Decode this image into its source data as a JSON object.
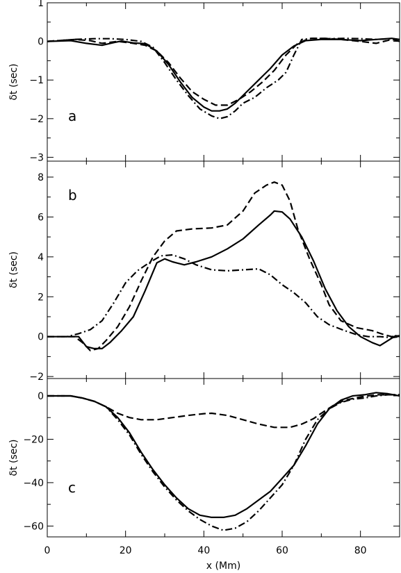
{
  "chart_data": [
    {
      "type": "line",
      "panel_label": "a",
      "ylabel": "δt (sec)",
      "xlim": [
        0,
        90
      ],
      "ylim": [
        -3.1,
        1
      ],
      "yticks": [
        -3,
        -2,
        -1,
        0,
        1
      ],
      "ytick_labels": [
        "−3",
        "−2",
        "−1",
        "0",
        "1"
      ],
      "series": [
        {
          "style": "solid",
          "points": [
            [
              0,
              0
            ],
            [
              6,
              0.02
            ],
            [
              10,
              -0.05
            ],
            [
              14,
              -0.1
            ],
            [
              17,
              -0.03
            ],
            [
              19,
              0.01
            ],
            [
              22,
              -0.04
            ],
            [
              25,
              -0.06
            ],
            [
              28,
              -0.25
            ],
            [
              31,
              -0.6
            ],
            [
              34,
              -1.05
            ],
            [
              37,
              -1.45
            ],
            [
              40,
              -1.7
            ],
            [
              42,
              -1.8
            ],
            [
              44,
              -1.8
            ],
            [
              46,
              -1.75
            ],
            [
              48,
              -1.6
            ],
            [
              51,
              -1.3
            ],
            [
              54,
              -1.0
            ],
            [
              57,
              -0.7
            ],
            [
              60,
              -0.35
            ],
            [
              63,
              -0.12
            ],
            [
              66,
              0.02
            ],
            [
              70,
              0.05
            ],
            [
              75,
              0.05
            ],
            [
              80,
              0.02
            ],
            [
              84,
              0.05
            ],
            [
              88,
              0.08
            ],
            [
              90,
              0.05
            ]
          ]
        },
        {
          "style": "dashed",
          "points": [
            [
              0,
              0
            ],
            [
              7,
              0.05
            ],
            [
              11,
              0.02
            ],
            [
              14,
              -0.05
            ],
            [
              18,
              0
            ],
            [
              22,
              -0.05
            ],
            [
              25,
              -0.1
            ],
            [
              28,
              -0.25
            ],
            [
              31,
              -0.55
            ],
            [
              34,
              -0.95
            ],
            [
              37,
              -1.3
            ],
            [
              40,
              -1.5
            ],
            [
              43,
              -1.65
            ],
            [
              46,
              -1.65
            ],
            [
              49,
              -1.5
            ],
            [
              52,
              -1.3
            ],
            [
              55,
              -1.05
            ],
            [
              58,
              -0.75
            ],
            [
              61,
              -0.35
            ],
            [
              64,
              -0.05
            ],
            [
              67,
              0.08
            ],
            [
              71,
              0.08
            ],
            [
              75,
              0.05
            ],
            [
              80,
              0
            ],
            [
              84,
              -0.05
            ],
            [
              88,
              0.05
            ],
            [
              90,
              0
            ]
          ]
        },
        {
          "style": "dashdot",
          "points": [
            [
              0,
              0
            ],
            [
              7,
              0.05
            ],
            [
              12,
              0.07
            ],
            [
              16,
              0.07
            ],
            [
              20,
              0.05
            ],
            [
              24,
              0
            ],
            [
              27,
              -0.15
            ],
            [
              30,
              -0.55
            ],
            [
              33,
              -1.0
            ],
            [
              36,
              -1.4
            ],
            [
              39,
              -1.75
            ],
            [
              42,
              -1.93
            ],
            [
              44,
              -2.0
            ],
            [
              46,
              -1.95
            ],
            [
              48,
              -1.8
            ],
            [
              50,
              -1.6
            ],
            [
              53,
              -1.45
            ],
            [
              56,
              -1.2
            ],
            [
              59,
              -1.0
            ],
            [
              61,
              -0.8
            ],
            [
              63,
              -0.35
            ],
            [
              65,
              0.05
            ],
            [
              68,
              0.08
            ],
            [
              72,
              0.07
            ],
            [
              76,
              0.08
            ],
            [
              80,
              0.07
            ],
            [
              84,
              0.05
            ],
            [
              88,
              0.07
            ],
            [
              90,
              0.05
            ]
          ]
        }
      ]
    },
    {
      "type": "line",
      "panel_label": "b",
      "ylabel": "δt (sec)",
      "xlim": [
        0,
        90
      ],
      "ylim": [
        -2.1,
        8.8
      ],
      "yticks": [
        -2,
        0,
        2,
        4,
        6,
        8
      ],
      "ytick_labels": [
        "−2",
        "0",
        "2",
        "4",
        "6",
        "8"
      ],
      "series": [
        {
          "style": "solid",
          "points": [
            [
              0,
              0
            ],
            [
              5,
              0
            ],
            [
              8,
              0
            ],
            [
              10,
              -0.5
            ],
            [
              12,
              -0.6
            ],
            [
              14,
              -0.6
            ],
            [
              16,
              -0.3
            ],
            [
              19,
              0.3
            ],
            [
              22,
              1.0
            ],
            [
              25,
              2.3
            ],
            [
              28,
              3.7
            ],
            [
              30,
              3.9
            ],
            [
              32,
              3.75
            ],
            [
              35,
              3.6
            ],
            [
              38,
              3.75
            ],
            [
              42,
              4.0
            ],
            [
              46,
              4.4
            ],
            [
              50,
              4.9
            ],
            [
              54,
              5.6
            ],
            [
              57,
              6.1
            ],
            [
              58,
              6.3
            ],
            [
              60,
              6.25
            ],
            [
              62,
              5.9
            ],
            [
              65,
              5.0
            ],
            [
              68,
              3.8
            ],
            [
              71,
              2.4
            ],
            [
              74,
              1.3
            ],
            [
              77,
              0.5
            ],
            [
              80,
              0
            ],
            [
              83,
              -0.3
            ],
            [
              85,
              -0.45
            ],
            [
              87,
              -0.2
            ],
            [
              89,
              0.05
            ],
            [
              90,
              0
            ]
          ]
        },
        {
          "style": "dashed",
          "points": [
            [
              0,
              0
            ],
            [
              7,
              0
            ],
            [
              9,
              -0.3
            ],
            [
              11,
              -0.7
            ],
            [
              13,
              -0.6
            ],
            [
              15,
              -0.2
            ],
            [
              18,
              0.5
            ],
            [
              21,
              1.5
            ],
            [
              24,
              2.8
            ],
            [
              27,
              4.0
            ],
            [
              30,
              4.8
            ],
            [
              33,
              5.3
            ],
            [
              37,
              5.4
            ],
            [
              42,
              5.45
            ],
            [
              46,
              5.6
            ],
            [
              50,
              6.3
            ],
            [
              53,
              7.2
            ],
            [
              56,
              7.6
            ],
            [
              58,
              7.75
            ],
            [
              60,
              7.6
            ],
            [
              62,
              6.8
            ],
            [
              64,
              5.4
            ],
            [
              67,
              3.9
            ],
            [
              70,
              2.6
            ],
            [
              72,
              1.6
            ],
            [
              75,
              0.8
            ],
            [
              79,
              0.45
            ],
            [
              83,
              0.3
            ],
            [
              86,
              0.1
            ],
            [
              88,
              0
            ],
            [
              90,
              0.05
            ]
          ]
        },
        {
          "style": "dashdot",
          "points": [
            [
              0,
              0
            ],
            [
              5,
              0
            ],
            [
              8,
              0.15
            ],
            [
              11,
              0.35
            ],
            [
              14,
              0.8
            ],
            [
              17,
              1.7
            ],
            [
              20,
              2.7
            ],
            [
              23,
              3.3
            ],
            [
              26,
              3.7
            ],
            [
              29,
              4.05
            ],
            [
              32,
              4.1
            ],
            [
              35,
              3.9
            ],
            [
              38,
              3.6
            ],
            [
              42,
              3.35
            ],
            [
              46,
              3.3
            ],
            [
              50,
              3.35
            ],
            [
              54,
              3.4
            ],
            [
              57,
              3.1
            ],
            [
              60,
              2.6
            ],
            [
              63,
              2.2
            ],
            [
              66,
              1.7
            ],
            [
              69,
              1.0
            ],
            [
              72,
              0.6
            ],
            [
              76,
              0.3
            ],
            [
              79,
              0.1
            ],
            [
              82,
              0
            ],
            [
              85,
              0
            ],
            [
              88,
              -0.05
            ],
            [
              90,
              0
            ]
          ]
        }
      ]
    },
    {
      "type": "line",
      "panel_label": "c",
      "ylabel": "δt (sec)",
      "xlabel": "x (Mm)",
      "xlim": [
        0,
        90
      ],
      "ylim": [
        -65,
        8
      ],
      "yticks": [
        -60,
        -40,
        -20,
        0
      ],
      "ytick_labels": [
        "−60",
        "−40",
        "−20",
        "0"
      ],
      "xticks": [
        0,
        20,
        40,
        60,
        80
      ],
      "xtick_labels": [
        "0",
        "20",
        "40",
        "60",
        "80"
      ],
      "series": [
        {
          "style": "solid",
          "points": [
            [
              0,
              0
            ],
            [
              6,
              0
            ],
            [
              9,
              -1
            ],
            [
              12,
              -2.5
            ],
            [
              15,
              -5
            ],
            [
              18,
              -10
            ],
            [
              21,
              -17
            ],
            [
              24,
              -26
            ],
            [
              27,
              -34
            ],
            [
              30,
              -41
            ],
            [
              33,
              -47
            ],
            [
              36,
              -52
            ],
            [
              39,
              -55
            ],
            [
              42,
              -56
            ],
            [
              45,
              -56
            ],
            [
              48,
              -55
            ],
            [
              51,
              -52
            ],
            [
              54,
              -48
            ],
            [
              57,
              -44
            ],
            [
              60,
              -38
            ],
            [
              63,
              -32
            ],
            [
              66,
              -23
            ],
            [
              69,
              -13
            ],
            [
              72,
              -6
            ],
            [
              75,
              -2
            ],
            [
              78,
              0
            ],
            [
              81,
              0.5
            ],
            [
              84,
              1.5
            ],
            [
              87,
              1
            ],
            [
              90,
              0
            ]
          ]
        },
        {
          "style": "dashed",
          "points": [
            [
              0,
              0
            ],
            [
              6,
              0
            ],
            [
              9,
              -1
            ],
            [
              12,
              -2.5
            ],
            [
              15,
              -5
            ],
            [
              18,
              -8
            ],
            [
              21,
              -10
            ],
            [
              24,
              -11
            ],
            [
              28,
              -11
            ],
            [
              32,
              -10
            ],
            [
              36,
              -9
            ],
            [
              40,
              -8.2
            ],
            [
              42,
              -8
            ],
            [
              46,
              -9
            ],
            [
              50,
              -11
            ],
            [
              54,
              -13
            ],
            [
              58,
              -14.5
            ],
            [
              62,
              -14.5
            ],
            [
              65,
              -13
            ],
            [
              68,
              -10.5
            ],
            [
              70,
              -8
            ],
            [
              73,
              -4.5
            ],
            [
              76,
              -2
            ],
            [
              80,
              -0.5
            ],
            [
              84,
              0.5
            ],
            [
              87,
              0.5
            ],
            [
              90,
              0.5
            ]
          ]
        },
        {
          "style": "dashdot",
          "points": [
            [
              0,
              0
            ],
            [
              6,
              0
            ],
            [
              9,
              -1
            ],
            [
              12,
              -2.5
            ],
            [
              15,
              -5
            ],
            [
              18,
              -11
            ],
            [
              21,
              -18
            ],
            [
              24,
              -27
            ],
            [
              27,
              -35
            ],
            [
              30,
              -42
            ],
            [
              33,
              -48
            ],
            [
              36,
              -53
            ],
            [
              39,
              -57
            ],
            [
              42,
              -60
            ],
            [
              45,
              -62
            ],
            [
              48,
              -61
            ],
            [
              51,
              -58
            ],
            [
              54,
              -53
            ],
            [
              57,
              -47
            ],
            [
              60,
              -41
            ],
            [
              63,
              -32
            ],
            [
              66,
              -20
            ],
            [
              69,
              -11
            ],
            [
              72,
              -6
            ],
            [
              75,
              -3
            ],
            [
              78,
              -1.5
            ],
            [
              81,
              -1
            ],
            [
              84,
              0
            ],
            [
              87,
              0.5
            ],
            [
              90,
              0.5
            ]
          ]
        }
      ]
    }
  ]
}
